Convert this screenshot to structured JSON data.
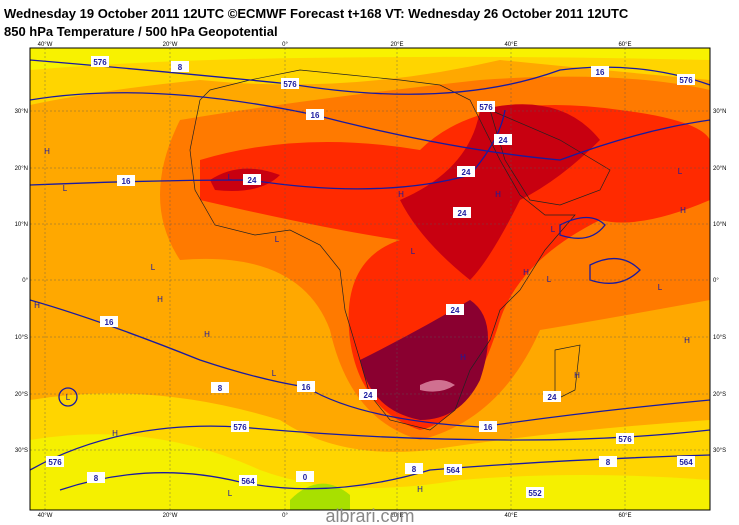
{
  "header": {
    "line1": "Wednesday 19 October 2011 12UTC ©ECMWF Forecast t+168 VT: Wednesday 26 October 2011 12UTC",
    "line2": "850 hPa Temperature / 500 hPa Geopotential"
  },
  "map": {
    "longitude_labels": [
      "40°W",
      "20°W",
      "0°",
      "20°E",
      "40°E",
      "60°E"
    ],
    "latitude_labels": [
      "30°N",
      "20°N",
      "10°N",
      "0°",
      "10°S",
      "20°S",
      "30°S"
    ],
    "contour_labels": [
      "576",
      "8",
      "576",
      "16",
      "576",
      "576",
      "16",
      "16",
      "24",
      "24",
      "24",
      "24",
      "16",
      "24",
      "8",
      "16",
      "24",
      "24",
      "16",
      "576",
      "576",
      "8",
      "564",
      "576",
      "8",
      "564",
      "8",
      "0",
      "564",
      "552"
    ],
    "pressure_centers": [
      "H",
      "H",
      "H",
      "L",
      "L",
      "L",
      "H",
      "L",
      "H",
      "L",
      "L",
      "H",
      "L",
      "H",
      "L",
      "H",
      "L",
      "L",
      "H",
      "H",
      "L",
      "H",
      "H",
      "L",
      "H"
    ]
  },
  "watermark": "albrari.com"
}
